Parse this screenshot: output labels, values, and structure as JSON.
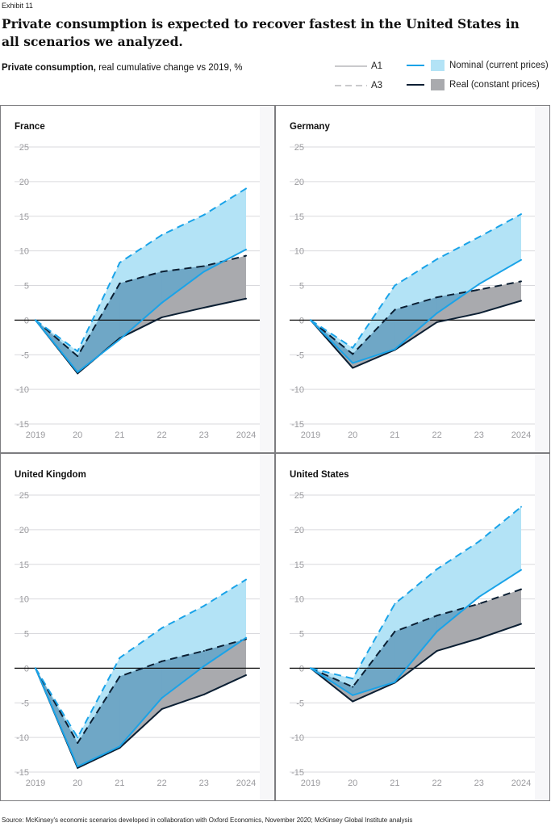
{
  "exhibit_label": "Exhibit 11",
  "headline": "Private consumption is expected to recover fastest in the United States in all scenarios we analyzed.",
  "subtitle": {
    "bold": "Private consumption,",
    "rest": " real cumulative change vs 2019, %"
  },
  "legend": {
    "a1": "A1",
    "a3": "A3",
    "nominal": "Nominal (current prices)",
    "real": "Real (constant prices)"
  },
  "colors": {
    "nominal_line": "#1aa3e8",
    "nominal_fill": "#b3e3f6",
    "real_line": "#0b1f33",
    "real_fill": "#a9aaae",
    "overlap_fill": "#6fa7c6",
    "grid": "#d9d9dd",
    "panel_border": "#7d7d80",
    "panel_bg": "#ffffff",
    "panel_bg_alt": "#f7f7f9"
  },
  "source": "Source: McKinsey's economic scenarios developed in collaboration with Oxford Economics, November 2020; McKinsey Global Institute analysis",
  "chart_data": [
    {
      "type": "area",
      "title": "France",
      "x": [
        "2019",
        "20",
        "21",
        "22",
        "23",
        "2024"
      ],
      "ylim": [
        -15,
        25
      ],
      "yticks": [
        25,
        20,
        15,
        10,
        5,
        0,
        -5,
        -10,
        -15
      ],
      "series": [
        {
          "name": "Nominal A3",
          "values": [
            0,
            -4.5,
            8.3,
            12.3,
            15.2,
            19.0
          ]
        },
        {
          "name": "Nominal A1",
          "values": [
            0,
            -7.5,
            -2.8,
            2.5,
            7.0,
            10.2
          ]
        },
        {
          "name": "Real A3",
          "values": [
            0,
            -5.2,
            5.3,
            7.0,
            7.8,
            9.3
          ]
        },
        {
          "name": "Real A1",
          "values": [
            0,
            -7.7,
            -2.6,
            0.4,
            1.8,
            3.1
          ]
        }
      ]
    },
    {
      "type": "area",
      "title": "Germany",
      "x": [
        "2019",
        "20",
        "21",
        "22",
        "23",
        "2024"
      ],
      "ylim": [
        -15,
        25
      ],
      "yticks": [
        25,
        20,
        15,
        10,
        5,
        0,
        -5,
        -10,
        -15
      ],
      "series": [
        {
          "name": "Nominal A3",
          "values": [
            0,
            -4.0,
            5.0,
            8.8,
            12.0,
            15.3
          ]
        },
        {
          "name": "Nominal A1",
          "values": [
            0,
            -6.2,
            -4.2,
            1.0,
            5.2,
            8.7
          ]
        },
        {
          "name": "Real A3",
          "values": [
            0,
            -4.9,
            1.5,
            3.3,
            4.4,
            5.6
          ]
        },
        {
          "name": "Real A1",
          "values": [
            0,
            -6.9,
            -4.3,
            -0.3,
            1.0,
            2.8
          ]
        }
      ]
    },
    {
      "type": "area",
      "title": "United Kingdom",
      "x": [
        "2019",
        "20",
        "21",
        "22",
        "23",
        "2024"
      ],
      "ylim": [
        -15,
        25
      ],
      "yticks": [
        25,
        20,
        15,
        10,
        5,
        0,
        -5,
        -10,
        -15
      ],
      "series": [
        {
          "name": "Nominal A3",
          "values": [
            0,
            -10.0,
            1.5,
            5.8,
            9.0,
            12.8
          ]
        },
        {
          "name": "Nominal A1",
          "values": [
            0,
            -14.2,
            -11.3,
            -4.3,
            0.3,
            4.4
          ]
        },
        {
          "name": "Real A3",
          "values": [
            0,
            -10.8,
            -1.2,
            1.0,
            2.5,
            4.2
          ]
        },
        {
          "name": "Real A1",
          "values": [
            0,
            -14.4,
            -11.5,
            -5.9,
            -3.8,
            -1.0
          ]
        }
      ]
    },
    {
      "type": "area",
      "title": "United States",
      "x": [
        "2019",
        "20",
        "21",
        "22",
        "23",
        "2024"
      ],
      "ylim": [
        -15,
        25
      ],
      "yticks": [
        25,
        20,
        15,
        10,
        5,
        0,
        -5,
        -10,
        -15
      ],
      "series": [
        {
          "name": "Nominal A3",
          "values": [
            0,
            -1.5,
            9.3,
            14.3,
            18.3,
            23.3
          ]
        },
        {
          "name": "Nominal A1",
          "values": [
            0,
            -3.9,
            -2.0,
            5.3,
            10.3,
            14.2
          ]
        },
        {
          "name": "Real A3",
          "values": [
            0,
            -2.7,
            5.3,
            7.6,
            9.3,
            11.4
          ]
        },
        {
          "name": "Real A1",
          "values": [
            0,
            -4.8,
            -2.1,
            2.5,
            4.3,
            6.4
          ]
        }
      ]
    }
  ]
}
